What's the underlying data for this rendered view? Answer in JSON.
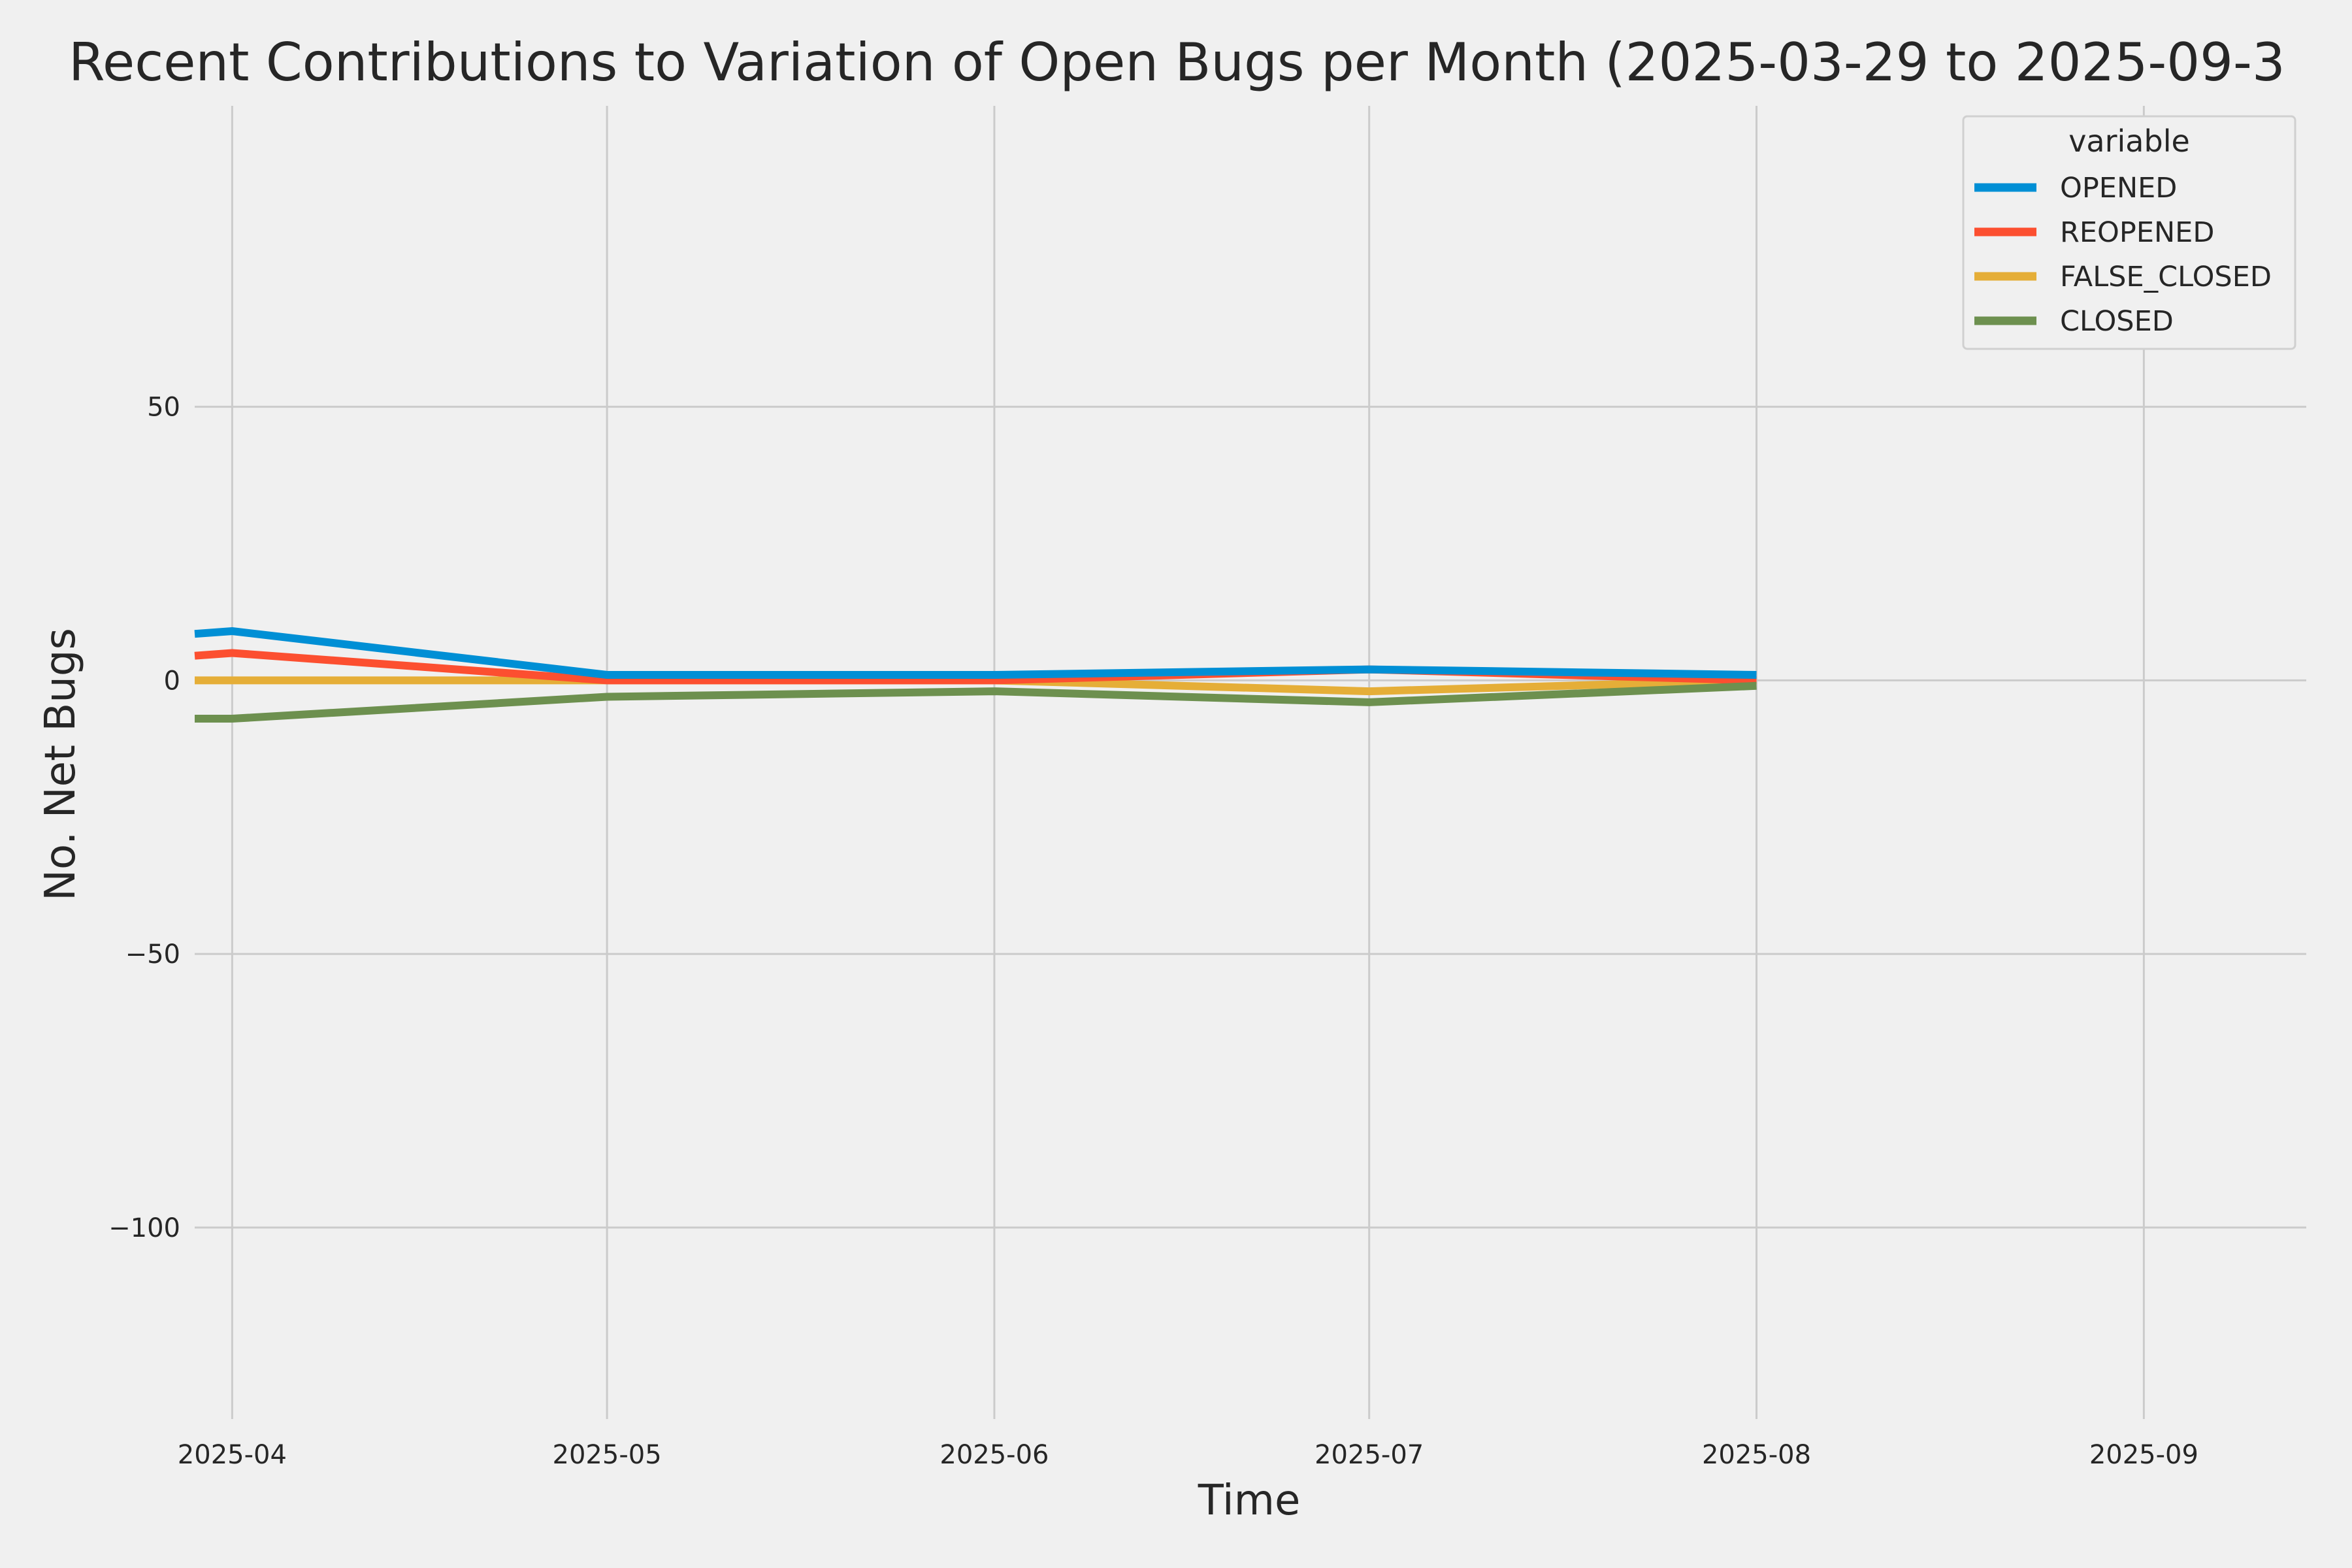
{
  "chart_data": {
    "type": "line",
    "title": "Recent Contributions to Variation of Open Bugs per Month (2025-03-29 to 2025-09-3",
    "xlabel": "Time",
    "ylabel": "No. Net Bugs",
    "x": [
      "2025-03-29",
      "2025-04-01",
      "2025-05-01",
      "2025-06-01",
      "2025-07-01",
      "2025-08-01"
    ],
    "xlim": [
      "2025-03-29",
      "2025-09-14"
    ],
    "ylim": [
      -135,
      105
    ],
    "x_ticks": [
      "2025-04-01",
      "2025-05-01",
      "2025-06-01",
      "2025-07-01",
      "2025-08-01",
      "2025-09-01"
    ],
    "x_tick_labels": [
      "2025-04",
      "2025-05",
      "2025-06",
      "2025-07",
      "2025-08",
      "2025-09"
    ],
    "y_ticks": [
      50,
      0,
      -50,
      -100
    ],
    "y_tick_labels": [
      "50",
      "0",
      "−50",
      "−100"
    ],
    "grid": true,
    "legend": {
      "title": "variable",
      "placement": "top-right"
    },
    "series": [
      {
        "name": "OPENED",
        "color": "#008fd5",
        "values": [
          8.5,
          9,
          1,
          1,
          2,
          1
        ]
      },
      {
        "name": "REOPENED",
        "color": "#fc4f30",
        "values": [
          4.5,
          5,
          0,
          0,
          2,
          0
        ]
      },
      {
        "name": "FALSE_CLOSED",
        "color": "#e5ae38",
        "values": [
          0,
          0,
          0,
          0,
          -2,
          0
        ]
      },
      {
        "name": "CLOSED",
        "color": "#6d904f",
        "values": [
          -7,
          -7,
          -3,
          -2,
          -4,
          -1
        ]
      }
    ]
  }
}
